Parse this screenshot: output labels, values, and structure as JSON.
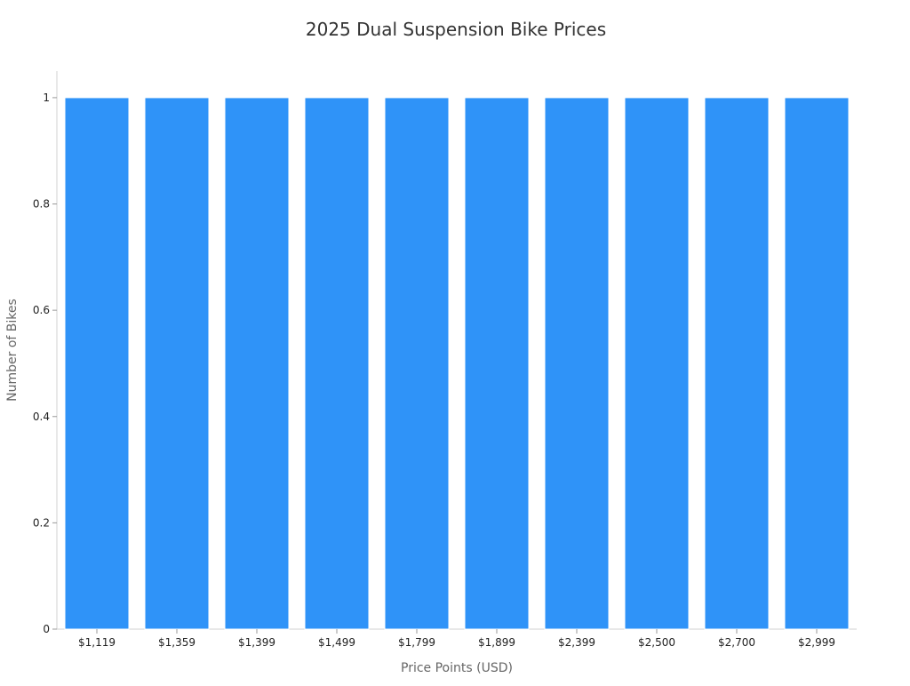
{
  "chart_data": {
    "type": "bar",
    "title": "2025 Dual Suspension Bike Prices",
    "xlabel": "Price Points (USD)",
    "ylabel": "Number of Bikes",
    "categories": [
      "$1,119",
      "$1,359",
      "$1,399",
      "$1,499",
      "$1,799",
      "$1,899",
      "$2,399",
      "$2,500",
      "$2,700",
      "$2,999"
    ],
    "values": [
      1,
      1,
      1,
      1,
      1,
      1,
      1,
      1,
      1,
      1
    ],
    "ylim": [
      0,
      1.05
    ],
    "yticks": [
      0,
      0.2,
      0.4,
      0.6,
      0.8,
      1
    ],
    "ytick_labels": [
      "0",
      "0.2",
      "0.4",
      "0.6",
      "0.8",
      "1"
    ],
    "grid": false,
    "legend": "none",
    "colors": {
      "bar": "#2f93f8",
      "axis": "#d0d0d0"
    }
  }
}
